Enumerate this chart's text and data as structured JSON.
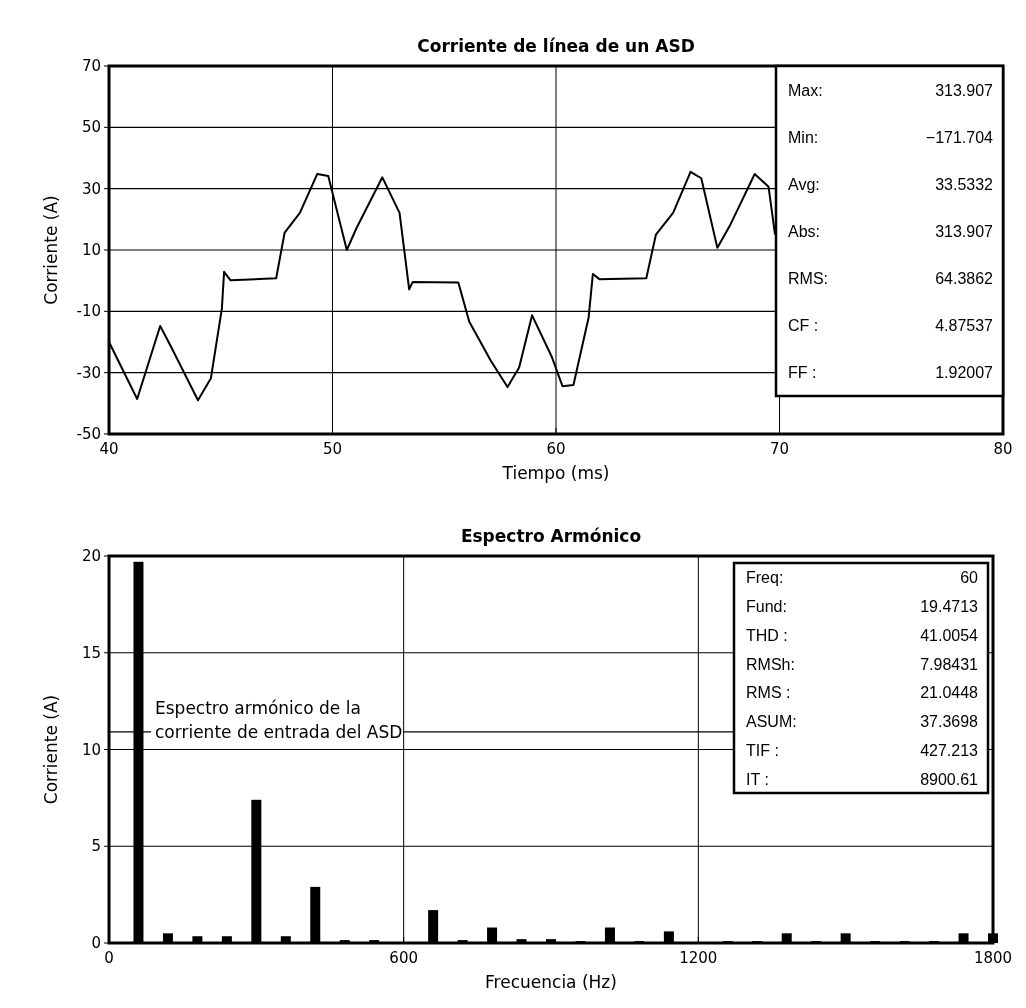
{
  "chart_data": [
    {
      "type": "line",
      "title": "Corriente de línea de un ASD",
      "xlabel": "Tiempo (ms)",
      "ylabel": "Corriente (A)",
      "xlim": [
        40,
        80
      ],
      "xticks": [
        40,
        50,
        60,
        70,
        80
      ],
      "ylim": [
        -50,
        70
      ],
      "yticks": [
        -50,
        -30,
        -10,
        10,
        30,
        50,
        70
      ],
      "grid": true,
      "series": [
        {
          "color": "#000000",
          "x": [
            40,
            41.26,
            42.29,
            42.8,
            43.98,
            44.56,
            45.05,
            45.15,
            45.44,
            47.48,
            47.86,
            48.54,
            49.32,
            49.81,
            50.64,
            51.07,
            52.23,
            53.0,
            53.43,
            53.59,
            55.63,
            56.12,
            57.09,
            57.83,
            58.35,
            58.93,
            59.81,
            60.29,
            60.78,
            61.46,
            61.65,
            61.94,
            64.04,
            64.47,
            65.24,
            66.02,
            66.5,
            67.22,
            67.77,
            68.89,
            69.51,
            69.8
          ],
          "values": [
            -20,
            -38.6,
            -14.8,
            -21.9,
            -39,
            -31.8,
            -9.1,
            2.9,
            0.1,
            0.8,
            15.7,
            22.1,
            34.8,
            34.1,
            10,
            17.1,
            33.7,
            22.1,
            -2.8,
            -0.4,
            -0.6,
            -13.4,
            -26.2,
            -34.7,
            -28.3,
            -11.3,
            -24.8,
            -34.4,
            -34,
            -12,
            2.2,
            0.5,
            0.8,
            15,
            22.1,
            35.5,
            33.4,
            10.7,
            17.8,
            34.8,
            30.6,
            15
          ]
        }
      ],
      "annotations": [
        "Max: 313.907",
        "Min: −171.704",
        "Avg: 33.5332",
        "Abs: 313.907",
        "RMS: 64.3862",
        "CF : 4.87537",
        "FF : 1.92007"
      ]
    },
    {
      "type": "bar",
      "title": "Espectro Armónico",
      "xlabel": "Frecuencia (Hz)",
      "ylabel": "Corriente (A)",
      "xlim": [
        0,
        1800
      ],
      "xticks": [
        0,
        600,
        1200,
        1800
      ],
      "ylim": [
        0,
        20
      ],
      "yticks": [
        0,
        5,
        10,
        15,
        20
      ],
      "grid": true,
      "x": [
        60,
        120,
        180,
        240,
        300,
        360,
        420,
        480,
        540,
        660,
        720,
        780,
        840,
        900,
        960,
        1020,
        1080,
        1140,
        1260,
        1320,
        1380,
        1440,
        1500,
        1560,
        1620,
        1680,
        1740,
        1800
      ],
      "series": [
        {
          "color": "#000000",
          "values": [
            19.7,
            0.5,
            0.35,
            0.35,
            7.4,
            0.35,
            2.9,
            0.15,
            0.15,
            1.7,
            0.15,
            0.8,
            0.2,
            0.2,
            0.1,
            0.8,
            0.1,
            0.6,
            0.1,
            0.1,
            0.5,
            0.1,
            0.5,
            0.1,
            0.1,
            0.1,
            0.5,
            0.5
          ]
        }
      ],
      "annotations": [
        "Espectro armónico de la\ncorriente de entrada del ASD",
        "Freq: 60",
        "Fund: 19.4713",
        "THD : 41.0054",
        "RMSh: 7.98431",
        "RMS : 21.0448",
        "ASUM: 37.3698",
        "TIF : 427.213",
        "IT : 8900.61"
      ]
    }
  ]
}
